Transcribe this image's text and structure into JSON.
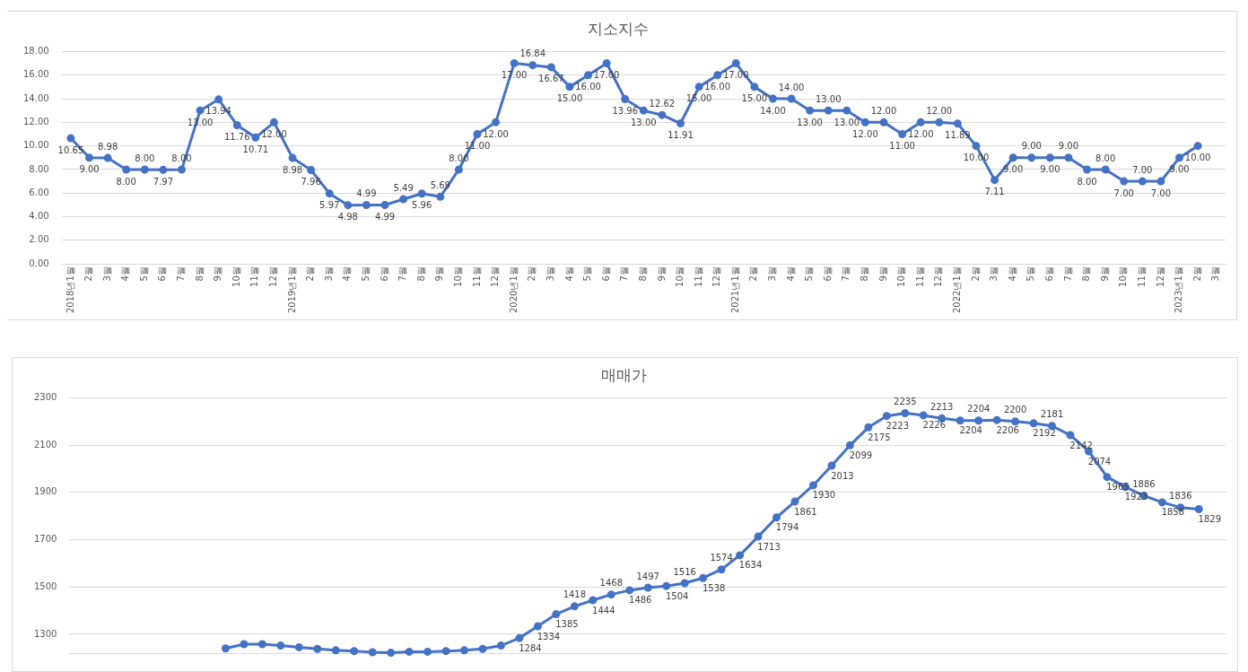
{
  "chart_data": [
    {
      "type": "line",
      "title": "지소지수",
      "color": "#4472c4",
      "marker": "circle",
      "grid": "y",
      "categories": [
        "2018년1월",
        "2월",
        "3월",
        "4월",
        "5월",
        "6월",
        "7월",
        "8월",
        "9월",
        "10월",
        "11월",
        "12월",
        "2019년1월",
        "2월",
        "3월",
        "4월",
        "5월",
        "6월",
        "7월",
        "8월",
        "9월",
        "10월",
        "11월",
        "12월",
        "2020년1월",
        "2월",
        "3월",
        "4월",
        "5월",
        "6월",
        "7월",
        "8월",
        "9월",
        "10월",
        "11월",
        "12월",
        "2021년1월",
        "2월",
        "3월",
        "4월",
        "5월",
        "6월",
        "7월",
        "8월",
        "9월",
        "10월",
        "11월",
        "12월",
        "2022년1월",
        "2월",
        "3월",
        "4월",
        "5월",
        "6월",
        "7월",
        "8월",
        "9월",
        "10월",
        "11월",
        "12월",
        "2023년1월",
        "2월",
        "3월"
      ],
      "values": [
        10.65,
        9,
        8.98,
        8,
        8,
        7.97,
        8,
        13,
        13.94,
        11.76,
        10.71,
        12,
        8.98,
        7.96,
        5.97,
        4.98,
        4.99,
        4.99,
        5.49,
        5.96,
        5.69,
        8,
        11,
        12,
        17,
        16.84,
        16.67,
        15,
        16,
        17,
        13.96,
        13,
        12.62,
        11.91,
        15,
        16,
        17,
        15,
        14,
        14,
        13,
        13,
        13,
        12,
        12,
        11,
        12,
        12,
        11.89,
        10,
        7.11,
        9,
        9,
        9,
        9,
        8,
        8,
        7,
        7,
        7,
        9,
        10,
        null
      ],
      "value_labels": [
        "10.65",
        "9.00",
        "8.98",
        "8.00",
        "8.00",
        "7.97",
        "8.00",
        "13.00",
        "13.94",
        "11.76",
        "10.71",
        "12.00",
        "8.98",
        "7.96",
        "5.97",
        "4.98",
        "4.99",
        "4.99",
        "5.49",
        "5.96",
        "5.69",
        "8.00",
        "11.00",
        "12.00",
        "17.00",
        "16.84",
        "16.67",
        "15.00",
        "16.00",
        "17.00",
        "13.96",
        "13.00",
        "12.62",
        "11.91",
        "15.00",
        "16.00",
        "17.00",
        "15.00",
        "14.00",
        "14.00",
        "13.00",
        "13.00",
        "13.00",
        "12.00",
        "12.00",
        "11.00",
        "12.00",
        "12.00",
        "11.89",
        "10.00",
        "7.11",
        "9.00",
        "9.00",
        "9.00",
        "9.00",
        "8.00",
        "8.00",
        "7.00",
        "7.00",
        "7.00",
        "9.00",
        "10.00",
        null
      ],
      "ylim": [
        0,
        18
      ],
      "yticks": [
        {
          "value": 0,
          "label": "0.00"
        },
        {
          "value": 2,
          "label": "2.00"
        },
        {
          "value": 4,
          "label": "4.00"
        },
        {
          "value": 6,
          "label": "6.00"
        },
        {
          "value": 8,
          "label": "8.00"
        },
        {
          "value": 10,
          "label": "10.00"
        },
        {
          "value": 12,
          "label": "12.00"
        },
        {
          "value": 14,
          "label": "14.00"
        },
        {
          "value": 16,
          "label": "16.00"
        },
        {
          "value": 18,
          "label": "18.00"
        }
      ]
    },
    {
      "type": "line",
      "title": "매매가",
      "color": "#4472c4",
      "marker": "circle",
      "grid": "y",
      "categories": [
        null,
        null,
        null,
        null,
        null,
        null,
        null,
        null,
        null,
        null,
        null,
        null,
        null,
        null,
        null,
        null,
        null,
        null,
        null,
        null,
        null,
        null,
        null,
        null,
        null,
        null,
        null,
        null,
        null,
        null,
        null,
        null,
        null,
        null,
        null,
        null,
        null,
        null,
        null,
        null,
        null,
        null,
        null,
        null,
        null,
        null,
        null,
        null,
        null,
        null,
        null,
        null,
        null,
        null,
        null,
        null,
        null,
        null,
        null,
        null,
        null,
        null,
        null
      ],
      "values": [
        null,
        null,
        null,
        null,
        null,
        null,
        null,
        null,
        1240,
        1258,
        1258,
        1252,
        1245,
        1238,
        1232,
        1229,
        1224,
        1222,
        1226,
        1226,
        1229,
        1232,
        1238,
        1252,
        1284,
        1334,
        1385,
        1418,
        1444,
        1468,
        1486,
        1497,
        1504,
        1516,
        1538,
        1574,
        1634,
        1713,
        1794,
        1861,
        1930,
        2013,
        2099,
        2175,
        2223,
        2235,
        2226,
        2213,
        2204,
        2204,
        2206,
        2200,
        2192,
        2181,
        2142,
        2074,
        1965,
        1923,
        1886,
        1858,
        1836,
        1829,
        null
      ],
      "value_labels": [
        null,
        null,
        null,
        null,
        null,
        null,
        null,
        null,
        null,
        null,
        null,
        null,
        null,
        null,
        null,
        null,
        null,
        null,
        null,
        null,
        null,
        null,
        null,
        null,
        "1284",
        "1334",
        "1385",
        "1418",
        "1444",
        "1468",
        "1486",
        "1497",
        "1504",
        "1516",
        "1538",
        "1574",
        "1634",
        "1713",
        "1794",
        "1861",
        "1930",
        "2013",
        "2099",
        "2175",
        "2223",
        "2235",
        "2226",
        "2213",
        "2204",
        "2204",
        "2206",
        "2200",
        "2192",
        "2181",
        "2142",
        "2074",
        "1965",
        "1923",
        "1886",
        "1858",
        "1836",
        "1829",
        null
      ],
      "ylim": [
        1220,
        2300
      ],
      "yticks": [
        1300,
        1500,
        1700,
        1900,
        2100,
        2300
      ]
    }
  ]
}
